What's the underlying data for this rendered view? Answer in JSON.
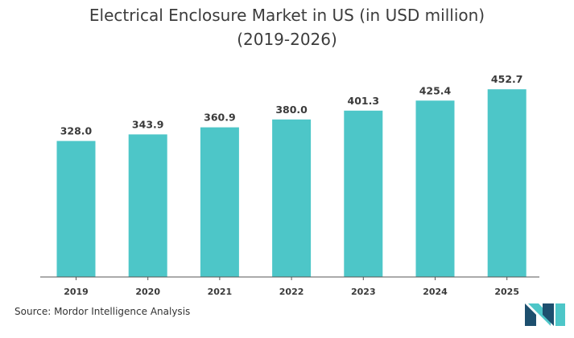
{
  "title_line1": "Electrical Enclosure Market in US (in USD million)",
  "title_line2": "(2019-2026)",
  "source": "Source: Mordor Intelligence Analysis",
  "colors": {
    "bar": "#4dc6c8",
    "axis": "#555555",
    "logo_dark": "#1d4f6e",
    "logo_light": "#4dc6c8"
  },
  "chart_data": {
    "type": "bar",
    "title": "Electrical Enclosure Market in US (in USD million) (2019-2026)",
    "categories": [
      "2019",
      "2020",
      "2021",
      "2022",
      "2023",
      "2024",
      "2025"
    ],
    "values": [
      328.0,
      343.9,
      360.9,
      380.0,
      401.3,
      425.4,
      452.7
    ],
    "value_labels": [
      "328.0",
      "343.9",
      "360.9",
      "380.0",
      "401.3",
      "425.4",
      "452.7"
    ],
    "xlabel": "",
    "ylabel": "",
    "grid": false,
    "legend": "none"
  }
}
